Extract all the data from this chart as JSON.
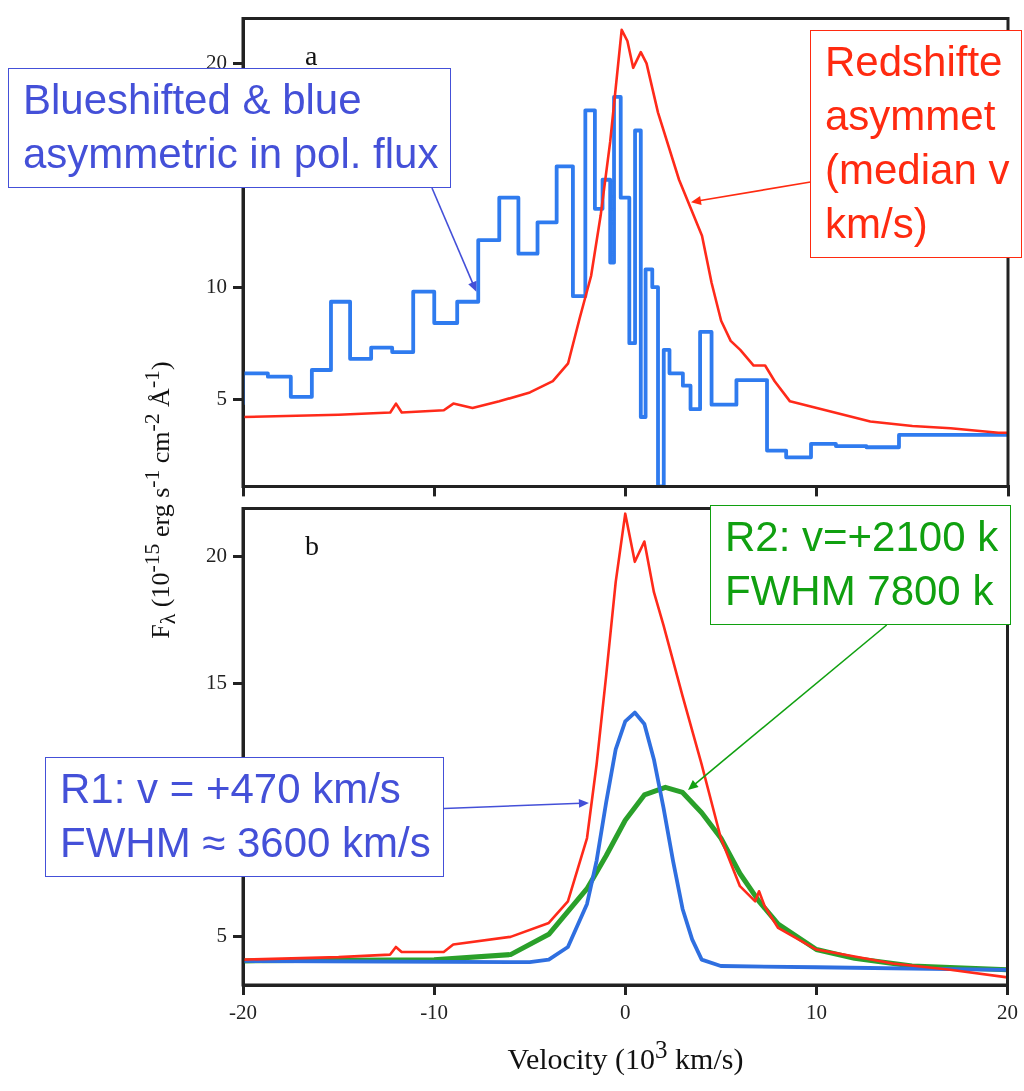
{
  "chart_data": [
    {
      "type": "line",
      "ylabel": "F$_{λ}$ (10$^{-15}$ erg s$^{-1}$ cm$^{-2}$ Å$^{-1}$)",
      "xlim": [
        -20,
        20
      ],
      "xticks": [
        -20,
        -10,
        0,
        10,
        20
      ],
      "ylim": [
        1.1,
        22
      ],
      "yticks": [
        5,
        10,
        {
          "value": 15,
          "label": null
        },
        20
      ],
      "tick_labels": "y",
      "annotations": [
        "a",
        {
          "text": "Blueshifted & blue\nasymmetric in pol. flux",
          "x": -7.8,
          "y": 9.8
        },
        {
          "text": "Redshifte\nasymmet\n(median v\nkm/s)",
          "x": 3.4,
          "y": 13.8
        }
      ],
      "series": [
        {
          "type": "line",
          "color": "#ff2a1a",
          "x": [
            -20,
            -15,
            -12.3,
            -12,
            -11.7,
            -9.5,
            -9,
            -8,
            -6.6,
            -5,
            -3.8,
            -3,
            -2.4,
            -1.8,
            -1.3,
            -0.8,
            -0.2,
            0.1,
            0.4,
            0.8,
            1.1,
            1.7,
            2.8,
            4,
            4.5,
            5,
            5.5,
            6,
            6.7,
            7.3,
            7.8,
            8.6,
            10,
            12.8,
            15,
            17,
            19.5,
            20
          ],
          "values": [
            4.2,
            4.3,
            4.4,
            4.8,
            4.4,
            4.5,
            4.8,
            4.6,
            4.9,
            5.3,
            5.8,
            6.6,
            8.6,
            10.5,
            13.2,
            16.5,
            21.5,
            21.0,
            19.8,
            20.5,
            20.0,
            17.8,
            14.8,
            12.3,
            10.2,
            8.5,
            7.6,
            7.2,
            6.5,
            6.5,
            5.8,
            4.9,
            4.6,
            4.0,
            3.8,
            3.7,
            3.5,
            3.5
          ]
        },
        {
          "type": "step",
          "color": "#2f7bef",
          "x": [
            -20,
            -18.7,
            -17.5,
            -16.4,
            -15.4,
            -14.4,
            -13.3,
            -12.2,
            -11.1,
            -10,
            -8.8,
            -7.7,
            -6.6,
            -5.6,
            -4.6,
            -3.6,
            -2.75,
            -2.1,
            -1.6,
            -1.2,
            -0.8,
            -0.6,
            -0.25,
            0.2,
            0.5,
            0.8,
            1.05,
            1.4,
            1.7,
            2.0,
            2.3,
            3.0,
            3.4,
            3.9,
            4.5,
            5.8,
            7.4,
            8.4,
            9.7,
            11.0,
            12.6,
            14.3,
            16.75,
            20
          ],
          "values": [
            4.75,
            6.15,
            6.0,
            5.1,
            6.3,
            9.35,
            6.8,
            7.3,
            7.1,
            9.8,
            8.4,
            9.35,
            12.1,
            14.0,
            11.5,
            12.9,
            15.4,
            9.6,
            17.9,
            13.5,
            14.8,
            11.1,
            18.5,
            14.0,
            7.5,
            17.0,
            4.2,
            10.8,
            10.0,
            1.1,
            7.2,
            6.15,
            5.6,
            4.55,
            8.0,
            4.75,
            5.85,
            2.7,
            2.4,
            3.0,
            2.9,
            2.85,
            3.4,
            3.4
          ]
        }
      ]
    },
    {
      "type": "line",
      "xlabel": "Velocity (10$^{3}$ km/s)",
      "xlim": [
        -20,
        20
      ],
      "xticks": [
        -20,
        -10,
        0,
        10,
        20
      ],
      "ylim": [
        3.1,
        21.9
      ],
      "yticks": [
        5,
        {
          "value": 10,
          "label": null
        },
        15,
        20
      ],
      "annotations": [
        "b",
        {
          "text": "R2: v=+2100 k\nFWHM 7800 k",
          "x": 3.3,
          "y": 10.8
        },
        {
          "text": "R1: v = +470 km/s\nFWHM ≈ 3600 km/s",
          "x": -1.9,
          "y": 10.3
        }
      ],
      "series": [
        {
          "type": "line",
          "color": "#ff2a1a",
          "x": [
            -20,
            -15,
            -12.3,
            -12,
            -11.7,
            -9.5,
            -9,
            -6,
            -4,
            -3,
            -2,
            -1.5,
            -1,
            -0.5,
            0,
            0.5,
            1,
            1.5,
            2,
            3,
            4,
            5,
            6,
            6.8,
            7,
            7.3,
            8,
            10,
            14,
            17,
            20
          ],
          "values": [
            4.1,
            4.2,
            4.3,
            4.6,
            4.4,
            4.4,
            4.7,
            5.0,
            5.55,
            6.4,
            8.9,
            11.8,
            15.3,
            19.0,
            21.7,
            19.8,
            20.6,
            18.6,
            17.3,
            14.5,
            11.8,
            8.9,
            7.0,
            6.4,
            6.8,
            6.2,
            5.35,
            4.5,
            3.95,
            3.7,
            3.4
          ]
        },
        {
          "type": "line",
          "color": "#2f6fe0",
          "x": [
            -20,
            -5,
            -4,
            -3,
            -2,
            -1.5,
            -1,
            -0.5,
            0,
            0.5,
            1,
            1.5,
            2,
            2.5,
            3,
            3.5,
            4,
            5,
            10,
            20
          ],
          "values": [
            4.05,
            4.0,
            4.1,
            4.6,
            6.3,
            8.0,
            10.3,
            12.4,
            13.5,
            13.85,
            13.4,
            12.0,
            10.1,
            8.0,
            6.1,
            4.9,
            4.1,
            3.85,
            3.8,
            3.7
          ]
        },
        {
          "type": "line",
          "color": "#2aa02a",
          "x": [
            -20,
            -10,
            -6,
            -4,
            -2,
            -1,
            0,
            1,
            2.1,
            3,
            4,
            5,
            6,
            7,
            8,
            10,
            12,
            15,
            20
          ],
          "values": [
            4.05,
            4.1,
            4.3,
            5.1,
            6.9,
            8.2,
            9.6,
            10.6,
            10.9,
            10.7,
            9.9,
            8.9,
            7.5,
            6.4,
            5.5,
            4.5,
            4.15,
            3.85,
            3.7
          ]
        }
      ]
    }
  ]
}
